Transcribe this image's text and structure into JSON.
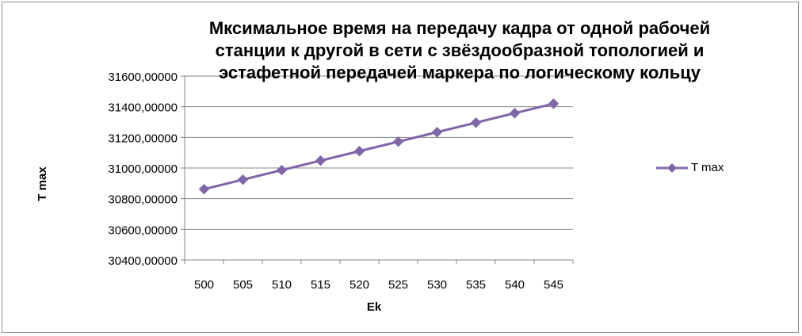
{
  "colors": {
    "series": "#7f66a8",
    "gridline": "#878787",
    "axis": "#878787",
    "frame": "#8c8c8c",
    "text": "#000000"
  },
  "chart_data": {
    "type": "line",
    "title": "Мксимальное время на передачу кадра от одной рабочей станции к другой в сети с звёздообразной топологией и эстафетной передачей маркера по логическому кольцу",
    "title_lines": [
      "Мксимальное время на передачу кадра от одной рабочей",
      "станции к другой в сети с звёздообразной топологией и",
      "эстафетной передачей маркера по логическому кольцу"
    ],
    "xlabel": "Ek",
    "ylabel": "T max",
    "categories": [
      "500",
      "505",
      "510",
      "515",
      "520",
      "525",
      "530",
      "535",
      "540",
      "545"
    ],
    "series": [
      {
        "name": "T max",
        "marker": "diamond",
        "values": [
          30862,
          30924,
          30986,
          31048,
          31110,
          31172,
          31234,
          31296,
          31358,
          31420
        ]
      }
    ],
    "ylim": [
      30400,
      31600
    ],
    "yticks": [
      30400,
      30600,
      30800,
      31000,
      31200,
      31400,
      31600
    ],
    "ytick_labels": [
      "30400,00000",
      "30600,00000",
      "30800,00000",
      "31000,00000",
      "31200,00000",
      "31400,00000",
      "31600,00000"
    ],
    "grid": "horizontal",
    "legend_position": "right"
  }
}
